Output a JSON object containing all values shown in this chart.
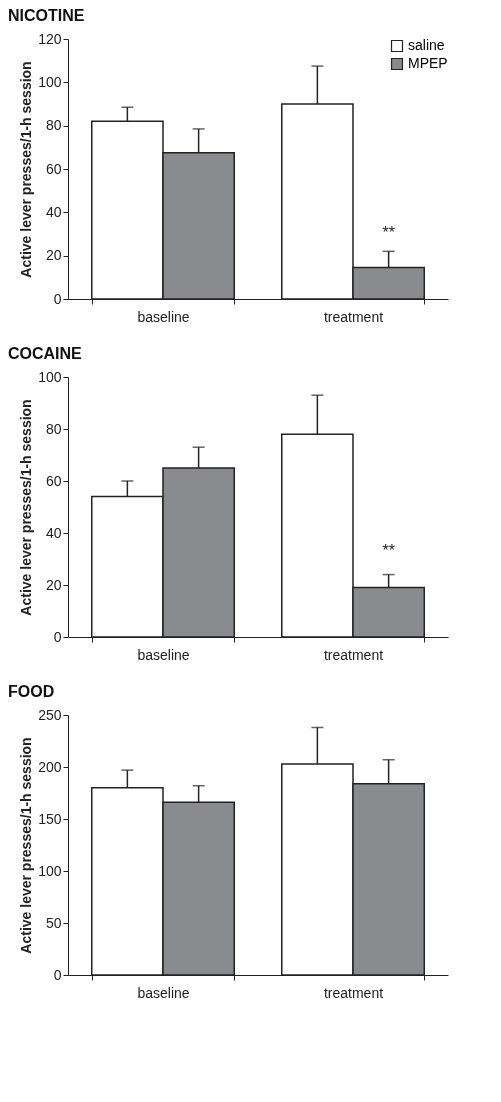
{
  "chart_data": [
    {
      "type": "bar",
      "title": "NICOTINE",
      "ylabel": "Active lever presses/1-h session",
      "categories": [
        "baseline",
        "treatment"
      ],
      "legend": "top right",
      "ylim": [
        0,
        120
      ],
      "yticks": [
        0,
        20,
        40,
        60,
        80,
        100,
        120
      ],
      "annotations": [
        {
          "text": "**",
          "x": "treatment",
          "y": 27
        }
      ],
      "series": [
        {
          "name": "saline",
          "color": "#ffffff",
          "values": [
            82,
            90
          ],
          "errors": [
            [
              82,
              88.5
            ],
            [
              90,
              107.5
            ]
          ]
        },
        {
          "name": "MPEP",
          "color": "#8a8b8e",
          "values": [
            67.5,
            14.5
          ],
          "errors": [
            [
              67.5,
              78.5
            ],
            [
              14.5,
              22
            ]
          ]
        }
      ]
    },
    {
      "type": "bar",
      "title": "COCAINE",
      "ylabel": "Active lever presses/1-h session",
      "categories": [
        "baseline",
        "treatment"
      ],
      "ylim": [
        0,
        100
      ],
      "yticks": [
        0,
        20,
        40,
        60,
        80,
        100
      ],
      "annotations": [
        {
          "text": "**",
          "x": "treatment",
          "y": 30
        }
      ],
      "series": [
        {
          "name": "saline",
          "color": "#ffffff",
          "values": [
            54,
            78
          ],
          "errors": [
            [
              54,
              60
            ],
            [
              78,
              93
            ]
          ]
        },
        {
          "name": "MPEP",
          "color": "#8a8b8e",
          "values": [
            65,
            19
          ],
          "errors": [
            [
              65,
              73
            ],
            [
              19,
              24
            ]
          ]
        }
      ]
    },
    {
      "type": "bar",
      "title": "FOOD",
      "ylabel": "Active lever presses/1-h session",
      "categories": [
        "baseline",
        "treatment"
      ],
      "ylim": [
        0,
        250
      ],
      "yticks": [
        0,
        50,
        100,
        150,
        200,
        250
      ],
      "series": [
        {
          "name": "saline",
          "color": "#ffffff",
          "values": [
            180,
            203
          ],
          "errors": [
            [
              180,
              197
            ],
            [
              203,
              238
            ]
          ]
        },
        {
          "name": "MPEP",
          "color": "#8a8b8e",
          "values": [
            166,
            184
          ],
          "errors": [
            [
              166,
              182
            ],
            [
              184,
              207
            ]
          ]
        }
      ]
    }
  ]
}
